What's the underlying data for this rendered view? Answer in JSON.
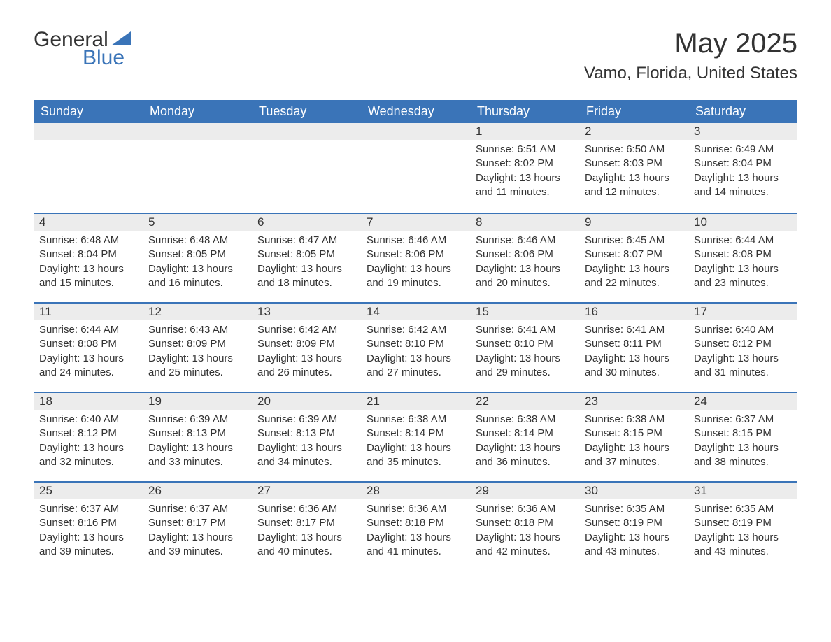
{
  "logo": {
    "text_general": "General",
    "text_blue": "Blue",
    "triangle_color": "#3a74b8"
  },
  "title": "May 2025",
  "location": "Vamo, Florida, United States",
  "colors": {
    "header_bg": "#3a74b8",
    "header_text": "#ffffff",
    "day_number_bg": "#ececec",
    "day_border_top": "#3a74b8",
    "body_text": "#333333",
    "page_bg": "#ffffff"
  },
  "typography": {
    "title_fontsize": 40,
    "location_fontsize": 24,
    "header_fontsize": 18,
    "daynum_fontsize": 17,
    "body_fontsize": 15
  },
  "weekdays": [
    "Sunday",
    "Monday",
    "Tuesday",
    "Wednesday",
    "Thursday",
    "Friday",
    "Saturday"
  ],
  "first_weekday_index": 4,
  "days": [
    {
      "n": 1,
      "sunrise": "6:51 AM",
      "sunset": "8:02 PM",
      "daylight": "13 hours and 11 minutes."
    },
    {
      "n": 2,
      "sunrise": "6:50 AM",
      "sunset": "8:03 PM",
      "daylight": "13 hours and 12 minutes."
    },
    {
      "n": 3,
      "sunrise": "6:49 AM",
      "sunset": "8:04 PM",
      "daylight": "13 hours and 14 minutes."
    },
    {
      "n": 4,
      "sunrise": "6:48 AM",
      "sunset": "8:04 PM",
      "daylight": "13 hours and 15 minutes."
    },
    {
      "n": 5,
      "sunrise": "6:48 AM",
      "sunset": "8:05 PM",
      "daylight": "13 hours and 16 minutes."
    },
    {
      "n": 6,
      "sunrise": "6:47 AM",
      "sunset": "8:05 PM",
      "daylight": "13 hours and 18 minutes."
    },
    {
      "n": 7,
      "sunrise": "6:46 AM",
      "sunset": "8:06 PM",
      "daylight": "13 hours and 19 minutes."
    },
    {
      "n": 8,
      "sunrise": "6:46 AM",
      "sunset": "8:06 PM",
      "daylight": "13 hours and 20 minutes."
    },
    {
      "n": 9,
      "sunrise": "6:45 AM",
      "sunset": "8:07 PM",
      "daylight": "13 hours and 22 minutes."
    },
    {
      "n": 10,
      "sunrise": "6:44 AM",
      "sunset": "8:08 PM",
      "daylight": "13 hours and 23 minutes."
    },
    {
      "n": 11,
      "sunrise": "6:44 AM",
      "sunset": "8:08 PM",
      "daylight": "13 hours and 24 minutes."
    },
    {
      "n": 12,
      "sunrise": "6:43 AM",
      "sunset": "8:09 PM",
      "daylight": "13 hours and 25 minutes."
    },
    {
      "n": 13,
      "sunrise": "6:42 AM",
      "sunset": "8:09 PM",
      "daylight": "13 hours and 26 minutes."
    },
    {
      "n": 14,
      "sunrise": "6:42 AM",
      "sunset": "8:10 PM",
      "daylight": "13 hours and 27 minutes."
    },
    {
      "n": 15,
      "sunrise": "6:41 AM",
      "sunset": "8:10 PM",
      "daylight": "13 hours and 29 minutes."
    },
    {
      "n": 16,
      "sunrise": "6:41 AM",
      "sunset": "8:11 PM",
      "daylight": "13 hours and 30 minutes."
    },
    {
      "n": 17,
      "sunrise": "6:40 AM",
      "sunset": "8:12 PM",
      "daylight": "13 hours and 31 minutes."
    },
    {
      "n": 18,
      "sunrise": "6:40 AM",
      "sunset": "8:12 PM",
      "daylight": "13 hours and 32 minutes."
    },
    {
      "n": 19,
      "sunrise": "6:39 AM",
      "sunset": "8:13 PM",
      "daylight": "13 hours and 33 minutes."
    },
    {
      "n": 20,
      "sunrise": "6:39 AM",
      "sunset": "8:13 PM",
      "daylight": "13 hours and 34 minutes."
    },
    {
      "n": 21,
      "sunrise": "6:38 AM",
      "sunset": "8:14 PM",
      "daylight": "13 hours and 35 minutes."
    },
    {
      "n": 22,
      "sunrise": "6:38 AM",
      "sunset": "8:14 PM",
      "daylight": "13 hours and 36 minutes."
    },
    {
      "n": 23,
      "sunrise": "6:38 AM",
      "sunset": "8:15 PM",
      "daylight": "13 hours and 37 minutes."
    },
    {
      "n": 24,
      "sunrise": "6:37 AM",
      "sunset": "8:15 PM",
      "daylight": "13 hours and 38 minutes."
    },
    {
      "n": 25,
      "sunrise": "6:37 AM",
      "sunset": "8:16 PM",
      "daylight": "13 hours and 39 minutes."
    },
    {
      "n": 26,
      "sunrise": "6:37 AM",
      "sunset": "8:17 PM",
      "daylight": "13 hours and 39 minutes."
    },
    {
      "n": 27,
      "sunrise": "6:36 AM",
      "sunset": "8:17 PM",
      "daylight": "13 hours and 40 minutes."
    },
    {
      "n": 28,
      "sunrise": "6:36 AM",
      "sunset": "8:18 PM",
      "daylight": "13 hours and 41 minutes."
    },
    {
      "n": 29,
      "sunrise": "6:36 AM",
      "sunset": "8:18 PM",
      "daylight": "13 hours and 42 minutes."
    },
    {
      "n": 30,
      "sunrise": "6:35 AM",
      "sunset": "8:19 PM",
      "daylight": "13 hours and 43 minutes."
    },
    {
      "n": 31,
      "sunrise": "6:35 AM",
      "sunset": "8:19 PM",
      "daylight": "13 hours and 43 minutes."
    }
  ],
  "labels": {
    "sunrise": "Sunrise:",
    "sunset": "Sunset:",
    "daylight": "Daylight:"
  }
}
